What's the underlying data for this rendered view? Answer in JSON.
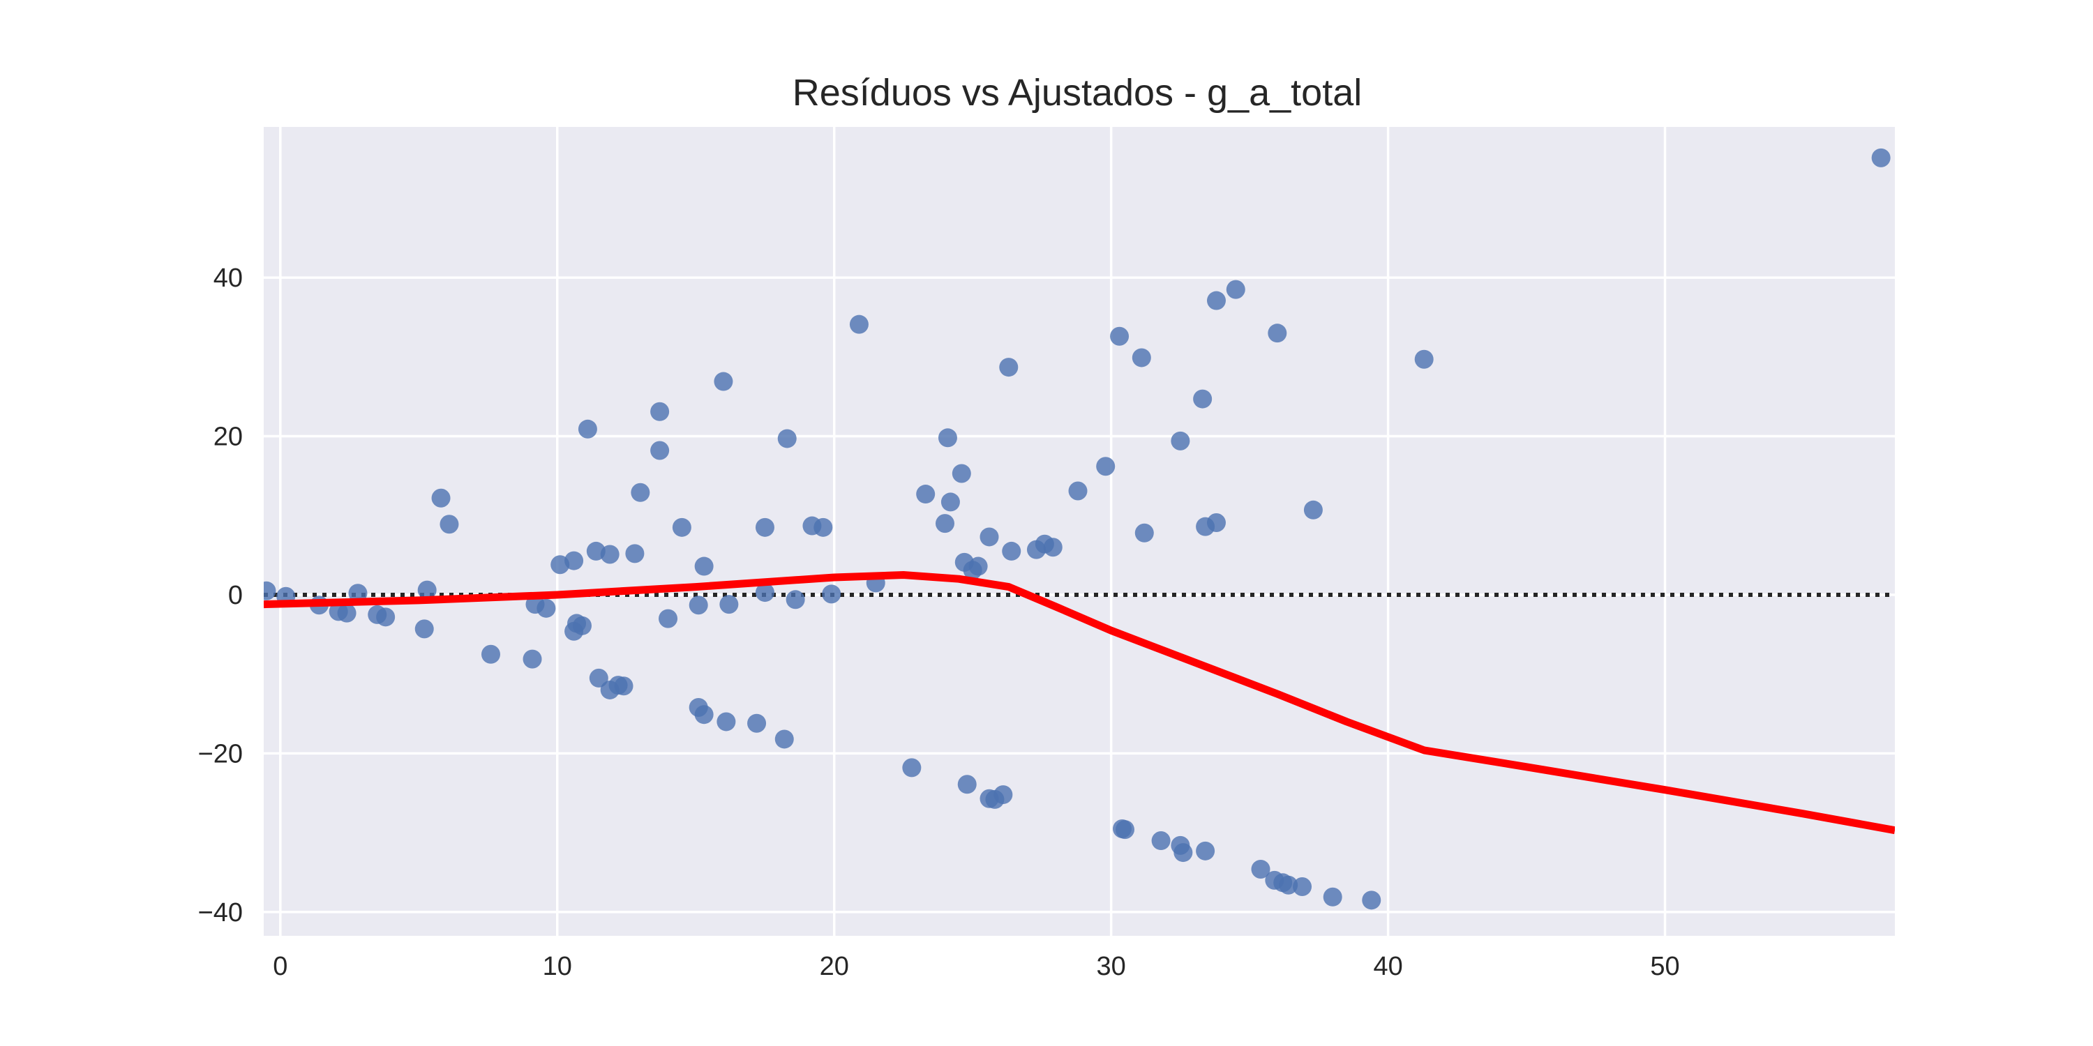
{
  "chart_data": {
    "type": "scatter",
    "title": "Resíduos vs Ajustados - g_a_total",
    "xlabel": "",
    "ylabel": "",
    "xlim": [
      -0.6,
      58.3
    ],
    "ylim": [
      -43.0,
      59.0
    ],
    "xticks": [
      0,
      10,
      20,
      30,
      40,
      50
    ],
    "yticks": [
      -40,
      -20,
      0,
      20,
      40
    ],
    "grid": true,
    "colors": {
      "background": "#EAEAF2",
      "points": "#4C72B0",
      "lowess": "#FF0000",
      "zero_line": "#262626"
    },
    "series": [
      {
        "kind": "points",
        "points": [
          [
            -0.5,
            0.5
          ],
          [
            0.2,
            -0.2
          ],
          [
            1.4,
            -1.3
          ],
          [
            2.1,
            -2.1
          ],
          [
            2.4,
            -2.3
          ],
          [
            2.8,
            0.2
          ],
          [
            3.5,
            -2.5
          ],
          [
            3.8,
            -2.8
          ],
          [
            5.2,
            -4.3
          ],
          [
            5.3,
            0.6
          ],
          [
            5.8,
            12.2
          ],
          [
            6.1,
            8.9
          ],
          [
            7.6,
            -7.5
          ],
          [
            9.1,
            -8.1
          ],
          [
            9.2,
            -1.2
          ],
          [
            9.6,
            -1.7
          ],
          [
            10.1,
            3.8
          ],
          [
            10.6,
            4.3
          ],
          [
            10.6,
            -4.6
          ],
          [
            10.7,
            -3.6
          ],
          [
            10.9,
            -3.9
          ],
          [
            11.1,
            20.9
          ],
          [
            11.4,
            5.5
          ],
          [
            11.5,
            -10.5
          ],
          [
            11.9,
            -12.0
          ],
          [
            11.9,
            5.1
          ],
          [
            12.2,
            -11.4
          ],
          [
            12.4,
            -11.5
          ],
          [
            12.8,
            5.2
          ],
          [
            13.0,
            12.9
          ],
          [
            13.7,
            23.1
          ],
          [
            13.7,
            18.2
          ],
          [
            14.0,
            -3.0
          ],
          [
            14.5,
            8.5
          ],
          [
            15.1,
            -14.2
          ],
          [
            15.1,
            -1.3
          ],
          [
            15.3,
            -15.1
          ],
          [
            15.3,
            3.6
          ],
          [
            16.0,
            26.9
          ],
          [
            16.1,
            -16.0
          ],
          [
            16.2,
            -1.2
          ],
          [
            17.2,
            -16.2
          ],
          [
            17.5,
            8.5
          ],
          [
            17.5,
            0.3
          ],
          [
            18.2,
            -18.2
          ],
          [
            18.3,
            19.7
          ],
          [
            18.6,
            -0.6
          ],
          [
            19.2,
            8.7
          ],
          [
            19.6,
            8.5
          ],
          [
            19.9,
            0.1
          ],
          [
            20.9,
            34.1
          ],
          [
            21.5,
            1.5
          ],
          [
            22.8,
            -21.8
          ],
          [
            23.3,
            12.7
          ],
          [
            24.0,
            9.0
          ],
          [
            24.1,
            19.8
          ],
          [
            24.2,
            11.7
          ],
          [
            24.6,
            15.3
          ],
          [
            24.7,
            4.1
          ],
          [
            24.8,
            -23.9
          ],
          [
            25.0,
            3.1
          ],
          [
            25.2,
            3.6
          ],
          [
            25.6,
            -25.7
          ],
          [
            25.6,
            7.3
          ],
          [
            25.8,
            -25.8
          ],
          [
            26.1,
            -25.2
          ],
          [
            26.3,
            28.7
          ],
          [
            26.4,
            5.5
          ],
          [
            27.3,
            5.7
          ],
          [
            27.6,
            6.4
          ],
          [
            27.9,
            6.0
          ],
          [
            28.8,
            13.1
          ],
          [
            29.8,
            16.2
          ],
          [
            30.3,
            32.6
          ],
          [
            30.4,
            -29.5
          ],
          [
            30.5,
            -29.6
          ],
          [
            31.1,
            29.9
          ],
          [
            31.2,
            7.8
          ],
          [
            31.8,
            -31.0
          ],
          [
            32.5,
            19.4
          ],
          [
            32.5,
            -31.6
          ],
          [
            32.6,
            -32.5
          ],
          [
            33.3,
            24.7
          ],
          [
            33.4,
            8.6
          ],
          [
            33.4,
            -32.3
          ],
          [
            33.8,
            37.1
          ],
          [
            33.8,
            9.1
          ],
          [
            34.5,
            38.5
          ],
          [
            35.4,
            -34.6
          ],
          [
            35.9,
            -36.0
          ],
          [
            36.0,
            33.0
          ],
          [
            36.2,
            -36.3
          ],
          [
            36.4,
            -36.6
          ],
          [
            36.9,
            -36.8
          ],
          [
            37.3,
            10.7
          ],
          [
            38.0,
            -38.1
          ],
          [
            39.4,
            -38.5
          ],
          [
            41.3,
            29.7
          ],
          [
            57.8,
            55.1
          ]
        ]
      },
      {
        "kind": "lowess",
        "points": [
          [
            -0.6,
            -1.2
          ],
          [
            5.0,
            -0.7
          ],
          [
            10.0,
            0.0
          ],
          [
            15.0,
            1.0
          ],
          [
            20.0,
            2.2
          ],
          [
            22.5,
            2.5
          ],
          [
            24.5,
            2.0
          ],
          [
            26.3,
            1.0
          ],
          [
            28.0,
            -1.5
          ],
          [
            30.0,
            -4.5
          ],
          [
            33.0,
            -8.5
          ],
          [
            36.0,
            -12.5
          ],
          [
            38.5,
            -16.0
          ],
          [
            41.3,
            -19.6
          ],
          [
            45.0,
            -21.7
          ],
          [
            50.0,
            -24.6
          ],
          [
            55.0,
            -27.6
          ],
          [
            58.3,
            -29.7
          ]
        ]
      },
      {
        "kind": "zero-line",
        "points": [
          [
            -0.6,
            0
          ],
          [
            58.3,
            0
          ]
        ]
      }
    ]
  }
}
